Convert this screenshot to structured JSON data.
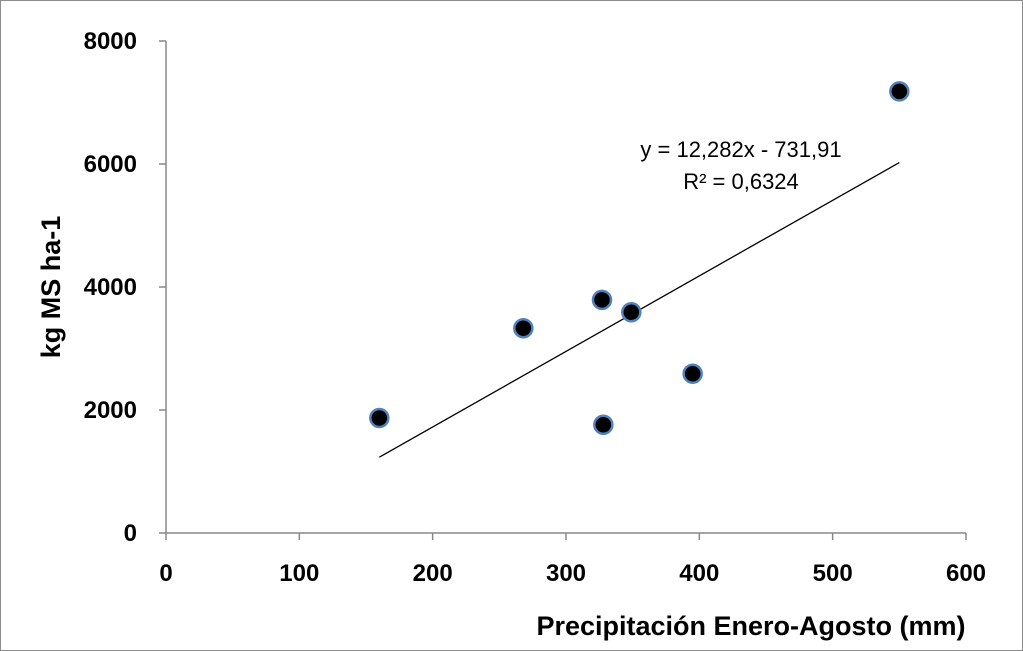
{
  "chart_data": {
    "type": "scatter",
    "title": "",
    "xlabel": "Precipitación Enero-Agosto (mm)",
    "ylabel": "kg MS ha-1",
    "xlim": [
      0,
      600
    ],
    "ylim": [
      0,
      8000
    ],
    "x_ticks": [
      "0",
      "100",
      "200",
      "300",
      "400",
      "500",
      "600"
    ],
    "y_ticks": [
      "0",
      "2000",
      "4000",
      "6000",
      "8000"
    ],
    "grid": false,
    "legend": "none",
    "series": [
      {
        "points": [
          {
            "x": 160,
            "y": 1870
          },
          {
            "x": 268,
            "y": 3330
          },
          {
            "x": 327,
            "y": 3790
          },
          {
            "x": 328,
            "y": 1760
          },
          {
            "x": 349,
            "y": 3590
          },
          {
            "x": 395,
            "y": 2590
          },
          {
            "x": 550,
            "y": 7180
          }
        ]
      }
    ],
    "trendline": {
      "type": "linear",
      "slope": 12.282,
      "intercept": -731.91,
      "x_range": [
        160,
        550
      ]
    },
    "annotations": {
      "equation": "y = 12,282x - 731,91",
      "r_squared": "R² = 0,6324"
    },
    "colors": {
      "marker_fill": "#000000",
      "marker_edge": "#4f81bd",
      "trendline": "#000000",
      "axis": "#888888"
    }
  }
}
